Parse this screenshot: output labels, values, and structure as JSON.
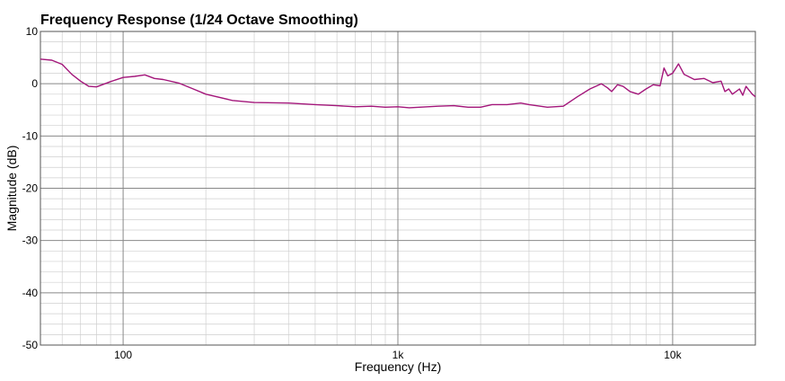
{
  "chart_data": {
    "type": "line",
    "title": "Frequency Response (1/24 Octave Smoothing)",
    "xlabel": "Frequency (Hz)",
    "ylabel": "Magnitude (dB)",
    "x_scale": "log",
    "xlim": [
      50,
      20000
    ],
    "ylim": [
      -50,
      10
    ],
    "x_ticks": [
      {
        "value": 100,
        "label": "100"
      },
      {
        "value": 1000,
        "label": "1k"
      },
      {
        "value": 10000,
        "label": "10k"
      }
    ],
    "y_ticks": [
      {
        "value": 10,
        "label": "10"
      },
      {
        "value": 0,
        "label": "0"
      },
      {
        "value": -10,
        "label": "-10"
      },
      {
        "value": -20,
        "label": "-20"
      },
      {
        "value": -30,
        "label": "-30"
      },
      {
        "value": -40,
        "label": "-40"
      },
      {
        "value": -50,
        "label": "-50"
      }
    ],
    "grid": true,
    "line_color": "#a3167a",
    "series": [
      {
        "x": [
          50,
          55,
          60,
          65,
          70,
          75,
          80,
          85,
          90,
          100,
          110,
          120,
          130,
          140,
          160,
          180,
          200,
          250,
          300,
          400,
          500,
          600,
          700,
          800,
          900,
          1000,
          1100,
          1200,
          1400,
          1600,
          1800,
          2000,
          2200,
          2500,
          2800,
          3000,
          3500,
          4000,
          4500,
          5000,
          5500,
          5800,
          6000,
          6300,
          6600,
          7000,
          7500,
          8000,
          8500,
          9000,
          9300,
          9600,
          10000,
          10500,
          11000,
          12000,
          13000,
          14000,
          15000,
          15500,
          16000,
          16500,
          17000,
          17500,
          18000,
          18500,
          19000,
          19500,
          20000
        ],
        "y": [
          4.7,
          4.5,
          3.7,
          1.8,
          0.5,
          -0.5,
          -0.6,
          -0.1,
          0.4,
          1.2,
          1.4,
          1.7,
          1.0,
          0.8,
          0.1,
          -1.0,
          -2.0,
          -3.2,
          -3.6,
          -3.7,
          -4.0,
          -4.2,
          -4.4,
          -4.3,
          -4.5,
          -4.4,
          -4.6,
          -4.5,
          -4.3,
          -4.2,
          -4.5,
          -4.5,
          -4.0,
          -4.0,
          -3.7,
          -4.0,
          -4.5,
          -4.3,
          -2.5,
          -1.0,
          0.0,
          -0.8,
          -1.5,
          -0.2,
          -0.5,
          -1.5,
          -2.0,
          -1.0,
          -0.2,
          -0.4,
          3.0,
          1.5,
          2.0,
          3.8,
          1.8,
          0.8,
          1.0,
          0.2,
          0.5,
          -1.5,
          -1.0,
          -2.0,
          -1.5,
          -1.0,
          -2.2,
          -0.5,
          -1.3,
          -2.0,
          -2.5
        ]
      }
    ]
  }
}
